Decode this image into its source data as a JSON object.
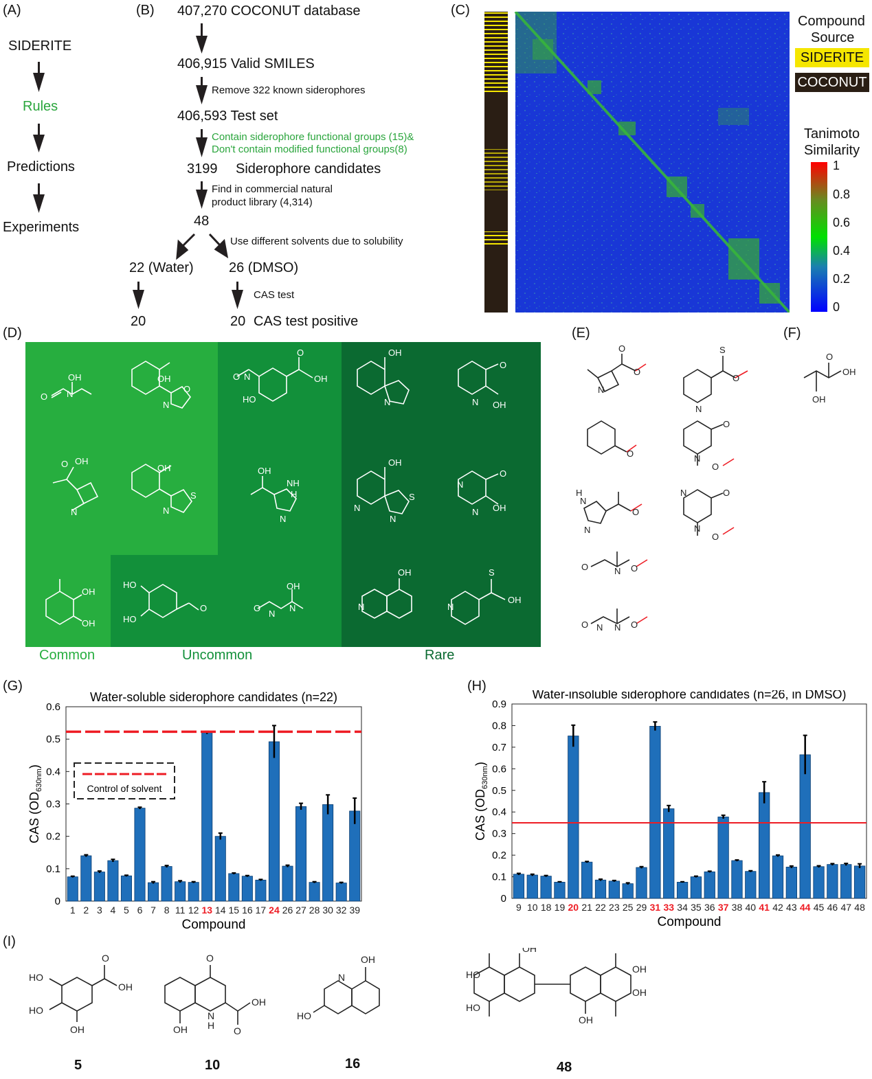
{
  "panels": {
    "A": "(A)",
    "B": "(B)",
    "C": "(C)",
    "D": "(D)",
    "E": "(E)",
    "F": "(F)",
    "G": "(G)",
    "H": "(H)",
    "I": "(I)"
  },
  "flowA": [
    "SIDERITE",
    "Rules",
    "Predictions",
    "Experiments"
  ],
  "flowB": {
    "n1": "407,270 COCONUT database",
    "n2": "406,915 Valid SMILES",
    "s2": "Remove 322 known siderophores",
    "n3": "406,593 Test set",
    "s3a": "Contain siderophore functional groups (15)&",
    "s3b": "Don't contain modified functional groups(8)",
    "n4a": "3199",
    "n4b": "Siderophore candidates",
    "s4a": "Find in commercial natural",
    "s4b": "product library (4,314)",
    "n5": "48",
    "s5": "Use different solvents due to solubility",
    "n6a": "22 (Water)",
    "n6b": "26 (DMSO)",
    "s6": "CAS test",
    "n7a": "20",
    "n7b": "20",
    "n7c": "CAS test positive"
  },
  "heatmap": {
    "title1": "Compound",
    "title2": "Source",
    "legend_siderite": "SIDERITE",
    "legend_coconut": "COCONUT",
    "scale_title1": "Tanimoto",
    "scale_title2": "Similarity",
    "scale_ticks": [
      "1",
      "0.8",
      "0.6",
      "0.4",
      "0.2",
      "0"
    ],
    "colors": {
      "siderite": "#f5e600",
      "coconut": "#2a1e14"
    }
  },
  "groups": {
    "common": "Common",
    "uncommon": "Uncommon",
    "rare": "Rare",
    "colors": {
      "common": "#27ae3f",
      "uncommon": "#12903a",
      "rare": "#0b6a31"
    }
  },
  "mol_labels": {
    "OH": "OH",
    "O": "O",
    "N": "N",
    "S": "S",
    "H": "H",
    "NH": "NH"
  },
  "chart_data": [
    {
      "type": "bar",
      "title": "Water-soluble siderophore candidates (n=22)",
      "xlabel": "Compound",
      "ylabel": "CAS (OD630nm)",
      "ylim": [
        0,
        0.6
      ],
      "yticks": [
        "0",
        "0.1",
        "0.2",
        "0.3",
        "0.4",
        "0.5",
        "0.6"
      ],
      "categories": [
        "1",
        "2",
        "3",
        "4",
        "5",
        "6",
        "7",
        "8",
        "11",
        "12",
        "13",
        "14",
        "15",
        "16",
        "17",
        "24",
        "26",
        "27",
        "28",
        "30",
        "32",
        "39"
      ],
      "values": [
        0.075,
        0.14,
        0.09,
        0.125,
        0.078,
        0.287,
        0.057,
        0.107,
        0.06,
        0.058,
        0.52,
        0.2,
        0.085,
        0.077,
        0.065,
        0.492,
        0.108,
        0.292,
        0.058,
        0.298,
        0.056,
        0.278
      ],
      "errors": [
        0.002,
        0.003,
        0.003,
        0.004,
        0.002,
        0.003,
        0.003,
        0.003,
        0.003,
        0.002,
        0.004,
        0.01,
        0.002,
        0.002,
        0.002,
        0.05,
        0.003,
        0.01,
        0.002,
        0.03,
        0.002,
        0.04
      ],
      "highlight": [
        "13",
        "24"
      ],
      "control": 0.523,
      "control_label": "Control of solvent",
      "bar_color": "#1f6fba",
      "control_color": "#ee1c24"
    },
    {
      "type": "bar",
      "title": "Water-insoluble siderophore candidates (n=26, in DMSO)",
      "xlabel": "Compound",
      "ylabel": "CAS (OD630nm)",
      "ylim": [
        0,
        0.9
      ],
      "yticks": [
        "0",
        "0.1",
        "0.2",
        "0.3",
        "0.4",
        "0.5",
        "0.6",
        "0.7",
        "0.8",
        "0.9"
      ],
      "categories": [
        "9",
        "10",
        "18",
        "19",
        "20",
        "21",
        "22",
        "23",
        "25",
        "29",
        "31",
        "33",
        "34",
        "35",
        "36",
        "37",
        "38",
        "40",
        "41",
        "42",
        "43",
        "44",
        "45",
        "46",
        "47",
        "48"
      ],
      "values": [
        0.112,
        0.108,
        0.103,
        0.075,
        0.752,
        0.168,
        0.085,
        0.08,
        0.068,
        0.143,
        0.797,
        0.415,
        0.075,
        0.1,
        0.123,
        0.377,
        0.175,
        0.125,
        0.49,
        0.197,
        0.145,
        0.665,
        0.147,
        0.157,
        0.157,
        0.15
      ],
      "errors": [
        0.004,
        0.004,
        0.003,
        0.002,
        0.05,
        0.003,
        0.004,
        0.003,
        0.004,
        0.004,
        0.02,
        0.015,
        0.002,
        0.003,
        0.003,
        0.008,
        0.003,
        0.003,
        0.05,
        0.004,
        0.005,
        0.09,
        0.004,
        0.004,
        0.005,
        0.01
      ],
      "highlight": [
        "20",
        "31",
        "33",
        "37",
        "41",
        "44"
      ],
      "control": 0.35,
      "bar_color": "#1f6fba",
      "control_color": "#ee1c24"
    }
  ],
  "compounds_I": [
    "5",
    "10",
    "16",
    "48"
  ]
}
